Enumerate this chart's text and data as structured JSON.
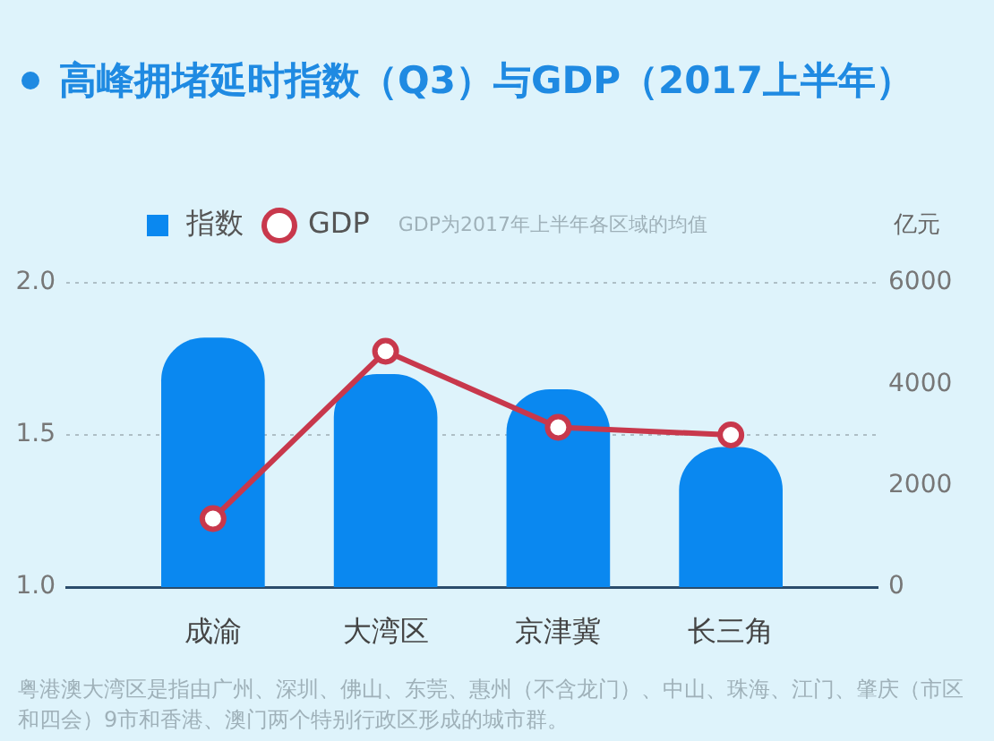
{
  "chart_data": {
    "type": "bar",
    "title": "高峰拥堵延时指数（Q3）与GDP（2017上半年）",
    "y2label": "亿元",
    "categories": [
      "成渝",
      "大湾区",
      "京津冀",
      "长三角"
    ],
    "series": [
      {
        "name": "指数",
        "color": "#0a88f0",
        "values": [
          1.82,
          1.7,
          1.65,
          1.46
        ]
      },
      {
        "name": "GDP",
        "type": "line",
        "axis": "y2",
        "color": "#c8384c",
        "values": [
          1350,
          4650,
          3150,
          3000
        ]
      }
    ],
    "ylim": [
      1,
      2
    ],
    "yticks": [
      {
        "value": 1,
        "label": "1.0"
      },
      1.5,
      {
        "value": 2,
        "label": "2.0"
      }
    ],
    "y2lim": [
      0,
      6000
    ],
    "y2ticks": [
      0,
      2000,
      4000,
      6000
    ],
    "grid": "y",
    "legend": "top",
    "marker": "circle",
    "line_style": "solid",
    "annotations": [
      "GDP为2017年上半年各区域的均值",
      "粤港澳大湾区是指由广州、深圳、佛山、东莞、惠州（不含龙门）、中山、珠海、江门、肇庆（市区和四会）9市和香港、澳门两个特别行政区形成的城市群。"
    ]
  }
}
